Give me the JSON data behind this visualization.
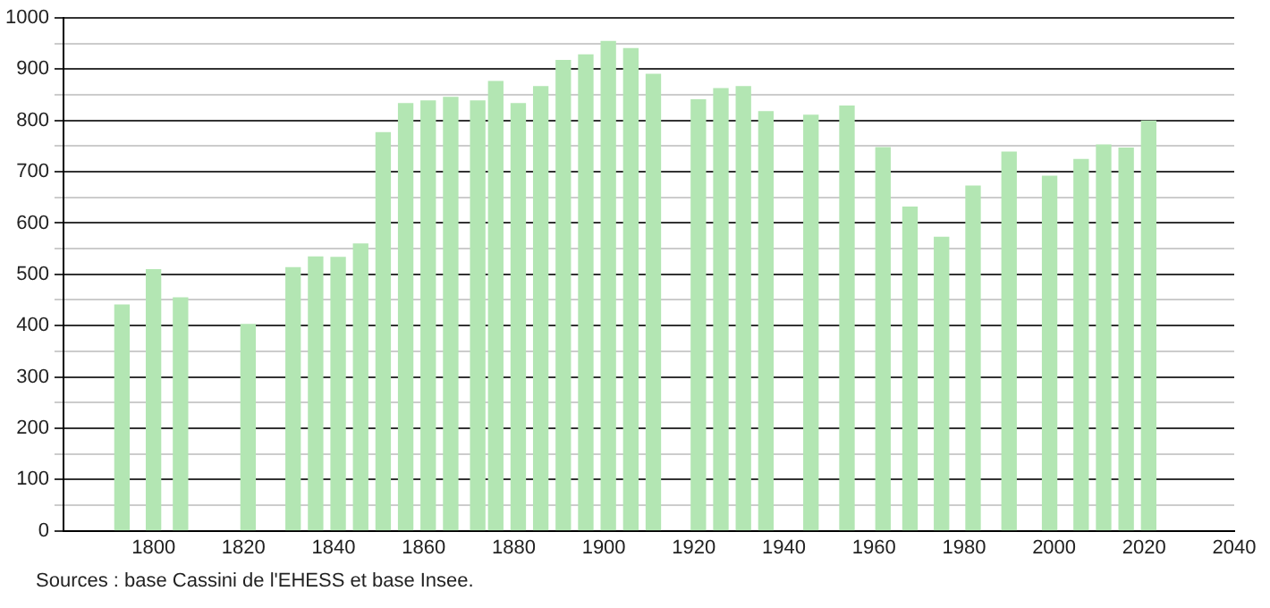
{
  "chart_data": {
    "type": "bar",
    "x": [
      1793,
      1800,
      1806,
      1821,
      1831,
      1836,
      1841,
      1846,
      1851,
      1856,
      1861,
      1866,
      1872,
      1876,
      1881,
      1886,
      1891,
      1896,
      1901,
      1906,
      1911,
      1921,
      1926,
      1931,
      1936,
      1946,
      1954,
      1962,
      1968,
      1975,
      1982,
      1990,
      1999,
      2006,
      2011,
      2016,
      2021
    ],
    "values": [
      440,
      509,
      454,
      402,
      513,
      534,
      533,
      559,
      776,
      833,
      838,
      845,
      838,
      876,
      833,
      866,
      917,
      928,
      954,
      940,
      890,
      840,
      862,
      866,
      817,
      810,
      828,
      747,
      631,
      572,
      672,
      738,
      691,
      724,
      752,
      746,
      799
    ],
    "color": "#b3e6b3",
    "xlim": [
      1780,
      2040
    ],
    "xticks": [
      {
        "value": 1780,
        "label": null
      },
      1800,
      1820,
      1840,
      1860,
      1880,
      1900,
      1920,
      1940,
      1960,
      1980,
      2000,
      2020,
      2040
    ],
    "ylim": [
      0,
      1000
    ],
    "yticks": [
      0,
      {
        "value": 50,
        "label": null
      },
      100,
      {
        "value": 150,
        "label": null
      },
      200,
      {
        "value": 250,
        "label": null
      },
      300,
      {
        "value": 350,
        "label": null
      },
      400,
      {
        "value": 450,
        "label": null
      },
      500,
      {
        "value": 550,
        "label": null
      },
      600,
      {
        "value": 650,
        "label": null
      },
      700,
      {
        "value": 750,
        "label": null
      },
      800,
      {
        "value": 850,
        "label": null
      },
      900,
      {
        "value": 950,
        "label": null
      },
      1000
    ],
    "grid": "y",
    "annotations": [
      "Sources : base Cassini de l'EHESS et base Insee."
    ]
  }
}
